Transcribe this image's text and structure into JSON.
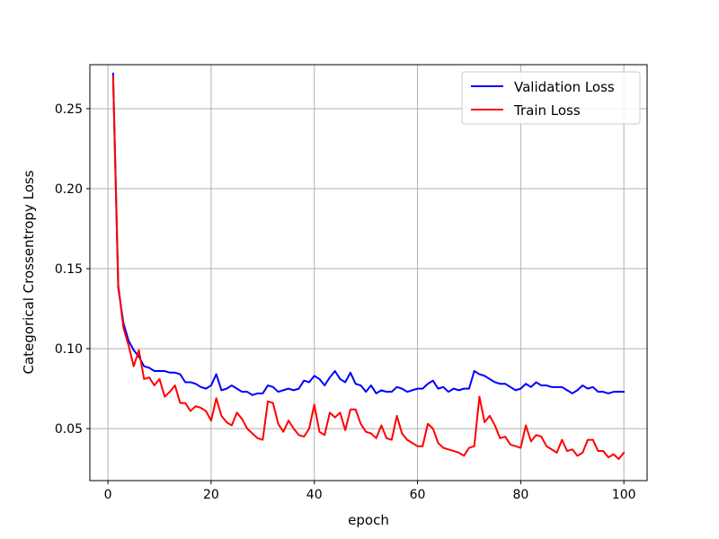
{
  "chart_data": {
    "type": "line",
    "title": "",
    "xlabel": "epoch",
    "ylabel": "Categorical Crossentropy Loss",
    "xlim": [
      -3.5,
      104.5
    ],
    "ylim": [
      0.0175,
      0.2775
    ],
    "xticks": [
      0,
      20,
      40,
      60,
      80,
      100
    ],
    "yticks": [
      0.05,
      0.1,
      0.15,
      0.2,
      0.25
    ],
    "xtick_labels": [
      "0",
      "20",
      "40",
      "60",
      "80",
      "100"
    ],
    "ytick_labels": [
      "0.05",
      "0.10",
      "0.15",
      "0.20",
      "0.25"
    ],
    "grid": true,
    "legend_position": "top-right",
    "x": [
      1,
      2,
      3,
      4,
      5,
      6,
      7,
      8,
      9,
      10,
      11,
      12,
      13,
      14,
      15,
      16,
      17,
      18,
      19,
      20,
      21,
      22,
      23,
      24,
      25,
      26,
      27,
      28,
      29,
      30,
      31,
      32,
      33,
      34,
      35,
      36,
      37,
      38,
      39,
      40,
      41,
      42,
      43,
      44,
      45,
      46,
      47,
      48,
      49,
      50,
      51,
      52,
      53,
      54,
      55,
      56,
      57,
      58,
      59,
      60,
      61,
      62,
      63,
      64,
      65,
      66,
      67,
      68,
      69,
      70,
      71,
      72,
      73,
      74,
      75,
      76,
      77,
      78,
      79,
      80,
      81,
      82,
      83,
      84,
      85,
      86,
      87,
      88,
      89,
      90,
      91,
      92,
      93,
      94,
      95,
      96,
      97,
      98,
      99,
      100
    ],
    "series": [
      {
        "name": "Validation Loss",
        "color": "#0000ff",
        "values": [
          0.272,
          0.138,
          0.116,
          0.105,
          0.099,
          0.095,
          0.089,
          0.088,
          0.086,
          0.086,
          0.086,
          0.085,
          0.085,
          0.084,
          0.079,
          0.079,
          0.078,
          0.076,
          0.075,
          0.077,
          0.084,
          0.074,
          0.075,
          0.077,
          0.075,
          0.073,
          0.073,
          0.071,
          0.072,
          0.072,
          0.077,
          0.076,
          0.073,
          0.074,
          0.075,
          0.074,
          0.075,
          0.08,
          0.079,
          0.083,
          0.081,
          0.077,
          0.082,
          0.086,
          0.081,
          0.079,
          0.085,
          0.078,
          0.077,
          0.073,
          0.077,
          0.072,
          0.074,
          0.073,
          0.073,
          0.076,
          0.075,
          0.073,
          0.074,
          0.075,
          0.075,
          0.078,
          0.08,
          0.075,
          0.076,
          0.073,
          0.075,
          0.074,
          0.075,
          0.075,
          0.086,
          0.084,
          0.083,
          0.081,
          0.079,
          0.078,
          0.078,
          0.076,
          0.074,
          0.075,
          0.078,
          0.076,
          0.079,
          0.077,
          0.077,
          0.076,
          0.076,
          0.076,
          0.074,
          0.072,
          0.074,
          0.077,
          0.075,
          0.076,
          0.073,
          0.073,
          0.072,
          0.073,
          0.073,
          0.073
        ]
      },
      {
        "name": "Train Loss",
        "color": "#ff0000",
        "values": [
          0.27,
          0.14,
          0.113,
          0.102,
          0.089,
          0.099,
          0.081,
          0.082,
          0.077,
          0.081,
          0.07,
          0.073,
          0.077,
          0.066,
          0.066,
          0.061,
          0.064,
          0.063,
          0.061,
          0.055,
          0.069,
          0.058,
          0.054,
          0.052,
          0.06,
          0.056,
          0.05,
          0.047,
          0.044,
          0.043,
          0.067,
          0.066,
          0.053,
          0.048,
          0.055,
          0.05,
          0.046,
          0.045,
          0.05,
          0.065,
          0.048,
          0.046,
          0.06,
          0.057,
          0.06,
          0.049,
          0.062,
          0.062,
          0.053,
          0.048,
          0.047,
          0.044,
          0.052,
          0.044,
          0.043,
          0.058,
          0.047,
          0.043,
          0.041,
          0.039,
          0.039,
          0.053,
          0.05,
          0.041,
          0.038,
          0.037,
          0.036,
          0.035,
          0.033,
          0.038,
          0.039,
          0.07,
          0.054,
          0.058,
          0.052,
          0.044,
          0.045,
          0.04,
          0.039,
          0.038,
          0.052,
          0.042,
          0.046,
          0.045,
          0.039,
          0.037,
          0.035,
          0.043,
          0.036,
          0.037,
          0.033,
          0.035,
          0.043,
          0.043,
          0.036,
          0.036,
          0.032,
          0.034,
          0.031,
          0.035
        ]
      }
    ]
  }
}
